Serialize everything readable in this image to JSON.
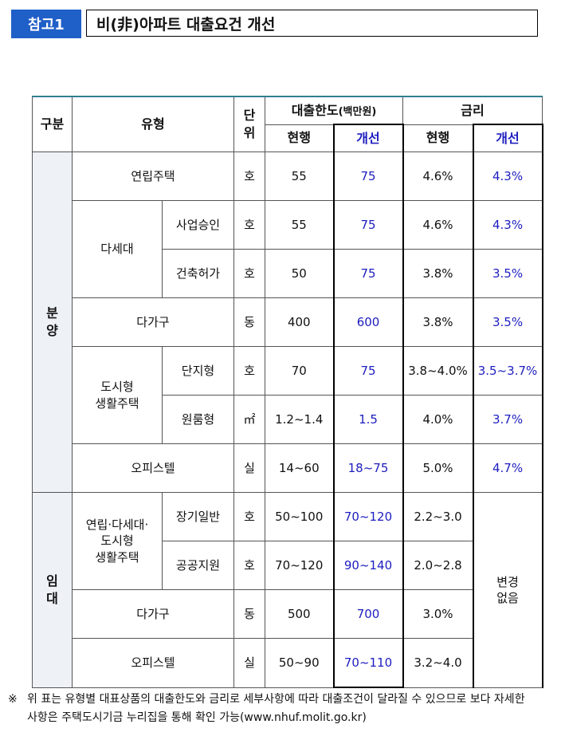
{
  "header": {
    "badge": "참고1",
    "title": "비(非)아파트 대출요건 개선"
  },
  "table": {
    "columns": {
      "category": "구분",
      "type": "유형",
      "unit": "단\n위",
      "loan_limit": "대출한도",
      "loan_limit_unit": "(백만원)",
      "rate": "금리",
      "current": "현행",
      "improved": "개선"
    },
    "sections": [
      {
        "name": "분\n양",
        "rows": [
          {
            "type": "연립주택",
            "unit": "호",
            "limit_current": "55",
            "limit_improved": "75",
            "rate_current": "4.6%",
            "rate_improved": "4.3%"
          },
          {
            "type": "다세대",
            "subtype": "사업승인",
            "unit": "호",
            "limit_current": "55",
            "limit_improved": "75",
            "rate_current": "4.6%",
            "rate_improved": "4.3%"
          },
          {
            "subtype": "건축허가",
            "unit": "호",
            "limit_current": "50",
            "limit_improved": "75",
            "rate_current": "3.8%",
            "rate_improved": "3.5%"
          },
          {
            "type": "다가구",
            "unit": "동",
            "limit_current": "400",
            "limit_improved": "600",
            "rate_current": "3.8%",
            "rate_improved": "3.5%"
          },
          {
            "type": "도시형\n생활주택",
            "subtype": "단지형",
            "unit": "호",
            "limit_current": "70",
            "limit_improved": "75",
            "rate_current": "3.8~4.0%",
            "rate_improved": "3.5~3.7%"
          },
          {
            "subtype": "원룸형",
            "unit": "㎡",
            "limit_current": "1.2~1.4",
            "limit_improved": "1.5",
            "rate_current": "4.0%",
            "rate_improved": "3.7%"
          },
          {
            "type": "오피스텔",
            "unit": "실",
            "limit_current": "14~60",
            "limit_improved": "18~75",
            "rate_current": "5.0%",
            "rate_improved": "4.7%"
          }
        ]
      },
      {
        "name": "임\n대",
        "rate_improved": "변경\n없음",
        "rows": [
          {
            "type": "연립·다세대·\n도시형\n생활주택",
            "subtype": "장기일반",
            "unit": "호",
            "limit_current": "50~100",
            "limit_improved": "70~120",
            "rate_current": "2.2~3.0"
          },
          {
            "subtype": "공공지원",
            "unit": "호",
            "limit_current": "70~120",
            "limit_improved": "90~140",
            "rate_current": "2.0~2.8"
          },
          {
            "type": "다가구",
            "unit": "동",
            "limit_current": "500",
            "limit_improved": "700",
            "rate_current": "3.0%"
          },
          {
            "type": "오피스텔",
            "unit": "실",
            "limit_current": "50~90",
            "limit_improved": "70~110",
            "rate_current": "3.2~4.0"
          }
        ]
      }
    ]
  },
  "footnote": {
    "mark": "※",
    "text": "위 표는 유형별 대표상품의 대출한도와 금리로 세부사항에 따라 대출조건이 달라질 수 있으므로 보다 자세한 사항은 주택도시기금 누리집을 통해 확인 가능(www.nhuf.molit.go.kr)"
  }
}
